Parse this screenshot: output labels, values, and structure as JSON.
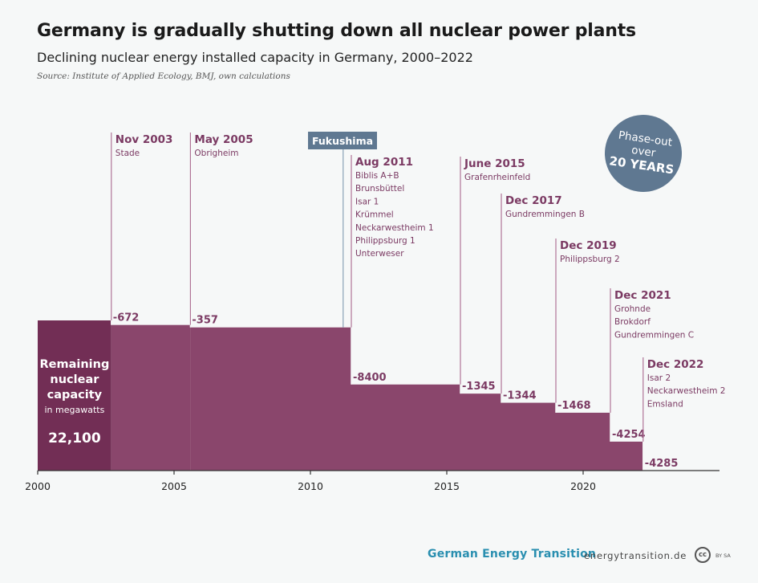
{
  "header": {
    "title": "Germany is gradually shutting down all nuclear power plants",
    "subtitle": "Declining nuclear energy installed capacity in Germany, 2000–2022",
    "source": "Source: Institute of Applied Ecology, BMJ, own calculations"
  },
  "badge": {
    "line1": "Phase-out",
    "line2": "over",
    "line3": "20 YEARS"
  },
  "footer": {
    "brand": "German Energy Transition",
    "url": "energytransition.de",
    "cc_icon": "cc",
    "cc_text": "BY SA"
  },
  "colors": {
    "step_fill": "#8a466c",
    "initial_fill": "#722e55",
    "label_color": "#7b3a63",
    "marker_line": "#b07598",
    "fukushima_bg": "#5f7891",
    "fukushima_line": "#8aa2b6",
    "axis": "#333333"
  },
  "chart_data": {
    "type": "step-area",
    "x_axis": {
      "min": 2000,
      "max": 2025,
      "ticks": [
        2000,
        2005,
        2010,
        2015,
        2020
      ]
    },
    "y_axis": {
      "min": 0,
      "max": 22100
    },
    "initial": {
      "value": 22100,
      "value_label": "22,100",
      "label_lines": [
        "Remaining",
        "nuclear",
        "capacity"
      ],
      "unit_label": "in megawatts"
    },
    "shutdowns": [
      {
        "date": "Nov 2003",
        "x": 2002.7,
        "change": -672,
        "change_label": "-672",
        "plants": [
          "Stade"
        ]
      },
      {
        "date": "May 2005",
        "x": 2005.6,
        "change": -357,
        "change_label": "-357",
        "plants": [
          "Obrigheim"
        ]
      },
      {
        "date": "Aug 2011",
        "x": 2011.5,
        "change": -8400,
        "change_label": "-8400",
        "plants": [
          "Biblis A+B",
          "Brunsbüttel",
          "Isar 1",
          "Krümmel",
          "Neckarwestheim 1",
          "Philippsburg 1",
          "Unterweser"
        ]
      },
      {
        "date": "June 2015",
        "x": 2015.5,
        "change": -1345,
        "change_label": "-1345",
        "plants": [
          "Grafenrheinfeld"
        ]
      },
      {
        "date": "Dec 2017",
        "x": 2017.0,
        "change": -1344,
        "change_label": "-1344",
        "plants": [
          "Gundremmingen B"
        ]
      },
      {
        "date": "Dec 2019",
        "x": 2019.0,
        "change": -1468,
        "change_label": "-1468",
        "plants": [
          "Philippsburg 2"
        ]
      },
      {
        "date": "Dec 2021",
        "x": 2021.0,
        "change": -4254,
        "change_label": "-4254",
        "plants": [
          "Grohnde",
          "Brokdorf",
          "Gundremmingen C"
        ]
      },
      {
        "date": "Dec 2022",
        "x": 2022.2,
        "change": -4285,
        "change_label": "-4285",
        "plants": [
          "Isar 2",
          "Neckarwestheim 2",
          "Emsland"
        ]
      }
    ],
    "event": {
      "label": "Fukushima",
      "x": 2011.2
    }
  }
}
